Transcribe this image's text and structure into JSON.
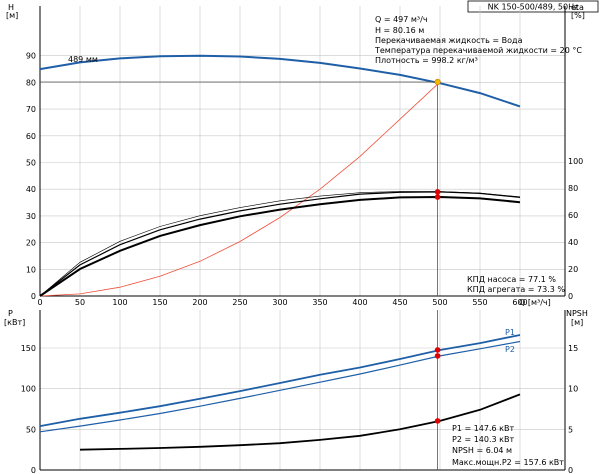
{
  "title_box": "NK 150-500/489, 50Hz",
  "colors": {
    "head_curve": "#1f5fa8",
    "efficiency_curve": "#000000",
    "system_curve": "#f0503c",
    "grid": "#c8c8c8",
    "axis": "#000000",
    "op_point_top": "#f5b800",
    "op_point": "#e00000",
    "p1_curve": "#1f5fa8",
    "p2_curve": "#1f5fa8",
    "npsh_curve": "#000000"
  },
  "axis_labels": {
    "top_left": "H\n[м]",
    "top_right": "eta\n[%]",
    "x_label": "Q [м³/ч]",
    "bottom_left": "P\n[кВт]",
    "bottom_right": "NPSH\n[м]"
  },
  "info_top": {
    "q": "Q = 497 м³/ч",
    "h": "H = 80.16 м",
    "fluid": "Перекачиваемая жидкость = Вода",
    "temp": "Температура перекачиваемой жидкости = 20 °C",
    "density": "Плотность = 998.2 кг/м³"
  },
  "info_eff": {
    "pump": "КПД насоса = 77.1 %",
    "unit": "КПД агрегата = 73.3 %"
  },
  "info_power": {
    "p1": "P1 = 147.6 кВт",
    "p2": "P2 = 140.3 кВт",
    "npsh": "NPSH = 6.04 м",
    "pmax": "Макс.мощн.P2 = 157.6 кВт"
  },
  "chart_data": [
    {
      "type": "line",
      "title": "NK 150-500/489, 50Hz",
      "xlabel": "Q [м³/ч]",
      "ylabel": "H [м]",
      "y2label": "eta [%]",
      "xlim": [
        0,
        600
      ],
      "ylim": [
        0,
        100
      ],
      "y2lim": [
        0,
        125
      ],
      "x_ticks": [
        0,
        50,
        100,
        150,
        200,
        250,
        300,
        350,
        400,
        450,
        500,
        550,
        600
      ],
      "y_ticks": [
        0,
        10,
        20,
        30,
        40,
        50,
        60,
        70,
        80,
        90
      ],
      "y2_ticks": [
        0,
        20,
        40,
        60,
        80,
        100
      ],
      "grid": true,
      "series": [
        {
          "name": "489 мм",
          "axis": "H",
          "x": [
            0,
            50,
            100,
            150,
            200,
            250,
            300,
            350,
            400,
            450,
            500,
            550,
            600
          ],
          "values": [
            85,
            87.5,
            89,
            89.8,
            90,
            89.7,
            88.8,
            87.3,
            85.2,
            82.8,
            79.7,
            76,
            71
          ]
        },
        {
          "axis": "H",
          "x": [
            0,
            50,
            100,
            150,
            200,
            250,
            300,
            350,
            400,
            450,
            500
          ],
          "values": [
            0,
            0.8,
            3.3,
            7.4,
            13,
            20.4,
            29.4,
            40,
            52.3,
            66.2,
            80.2
          ]
        },
        {
          "axis": "eta",
          "x": [
            0,
            50,
            100,
            150,
            200,
            250,
            300,
            350,
            400,
            450,
            500,
            550,
            600
          ],
          "values": [
            0,
            23,
            38,
            49,
            57,
            63,
            68,
            72,
            75.5,
            76.8,
            77.1,
            76,
            73
          ]
        },
        {
          "axis": "eta",
          "x": [
            0,
            50,
            100,
            150,
            200,
            250,
            300,
            350,
            400,
            450,
            500,
            550,
            600
          ],
          "values": [
            0,
            20,
            33.5,
            44.5,
            52.5,
            59,
            64,
            68,
            71.2,
            73,
            73.3,
            72.3,
            69.5
          ]
        },
        {
          "axis": "eta",
          "x": [
            0,
            50,
            100,
            150,
            200,
            250,
            300,
            350,
            400,
            450,
            500,
            550,
            600
          ],
          "values": [
            0,
            25,
            40.5,
            51.5,
            59.5,
            65.5,
            70.5,
            74,
            76.5,
            77.5,
            77.3,
            76.3,
            73.5
          ]
        }
      ],
      "operating_point": {
        "q": 497,
        "h": 80.16,
        "eta_pump": 77.1,
        "eta_unit": 73.3
      }
    },
    {
      "type": "line",
      "xlabel": "Q [м³/ч]",
      "ylabel": "P [кВт]",
      "y2label": "NPSH [м]",
      "xlim": [
        0,
        600
      ],
      "ylim": [
        0,
        200
      ],
      "y2lim": [
        0,
        20
      ],
      "y_ticks": [
        0,
        50,
        100,
        150
      ],
      "y2_ticks": [
        0,
        5,
        10,
        15
      ],
      "grid": true,
      "series": [
        {
          "name": "P1",
          "axis": "P",
          "x": [
            0,
            50,
            100,
            150,
            200,
            250,
            300,
            350,
            400,
            450,
            500,
            550,
            600
          ],
          "values": [
            54,
            63,
            70.5,
            78.5,
            87.5,
            97,
            107,
            117,
            126,
            136.5,
            147.6,
            156,
            166
          ]
        },
        {
          "name": "P2",
          "axis": "P",
          "x": [
            0,
            50,
            100,
            150,
            200,
            250,
            300,
            350,
            400,
            450,
            500,
            550,
            600
          ],
          "values": [
            47,
            54,
            61.5,
            69.5,
            78.5,
            88,
            98,
            108,
            118,
            129,
            140.3,
            149,
            158
          ]
        },
        {
          "axis": "NPSH",
          "x": [
            50,
            100,
            150,
            200,
            250,
            300,
            350,
            400,
            450,
            500,
            550,
            600
          ],
          "values": [
            2.5,
            2.6,
            2.7,
            2.85,
            3.05,
            3.3,
            3.7,
            4.2,
            5,
            6.04,
            7.4,
            9.3
          ]
        }
      ],
      "operating_point": {
        "q": 497,
        "p1": 147.6,
        "p2": 140.3,
        "npsh": 6.04
      }
    }
  ]
}
